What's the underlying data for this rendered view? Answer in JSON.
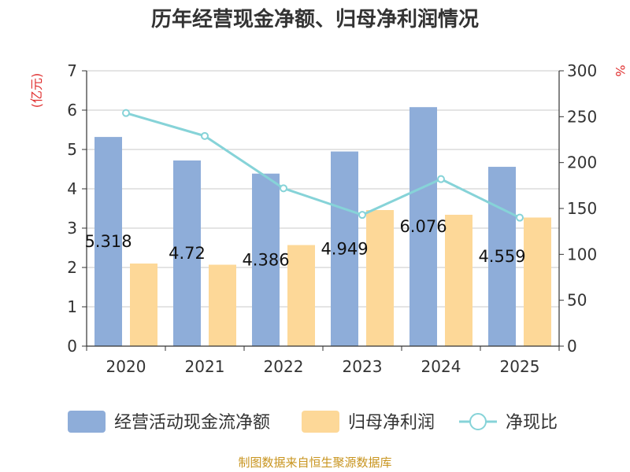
{
  "chart_data": {
    "type": "bar",
    "title": "历年经营现金净额、归母净利润情况",
    "categories": [
      "2020",
      "2021",
      "2022",
      "2023",
      "2024",
      "2025"
    ],
    "left_axis": {
      "unit": "(亿元)",
      "ylim": [
        0,
        7
      ],
      "ticks": [
        0,
        1,
        2,
        3,
        4,
        5,
        6,
        7
      ]
    },
    "right_axis": {
      "unit": "%",
      "ylim": [
        0,
        300
      ],
      "ticks": [
        0,
        50,
        100,
        150,
        200,
        250,
        300
      ]
    },
    "series": [
      {
        "name": "经营活动现金流净额",
        "type": "bar",
        "axis": "left",
        "color": "#8eadd9",
        "values": [
          5.318,
          4.72,
          4.386,
          4.949,
          6.076,
          4.559
        ],
        "labels": [
          "5.318",
          "4.72",
          "4.386",
          "4.949",
          "6.076",
          "4.559"
        ]
      },
      {
        "name": "归母净利润",
        "type": "bar",
        "axis": "left",
        "color": "#fdd898",
        "values": [
          2.1,
          2.07,
          2.57,
          3.46,
          3.34,
          3.27
        ]
      },
      {
        "name": "净现比",
        "type": "line",
        "axis": "right",
        "color": "#86d3d8",
        "values": [
          254,
          229,
          172,
          143,
          182,
          140
        ]
      }
    ],
    "grid": true,
    "legend_position": "bottom"
  },
  "source_text": "制图数据来自恒生聚源数据库"
}
